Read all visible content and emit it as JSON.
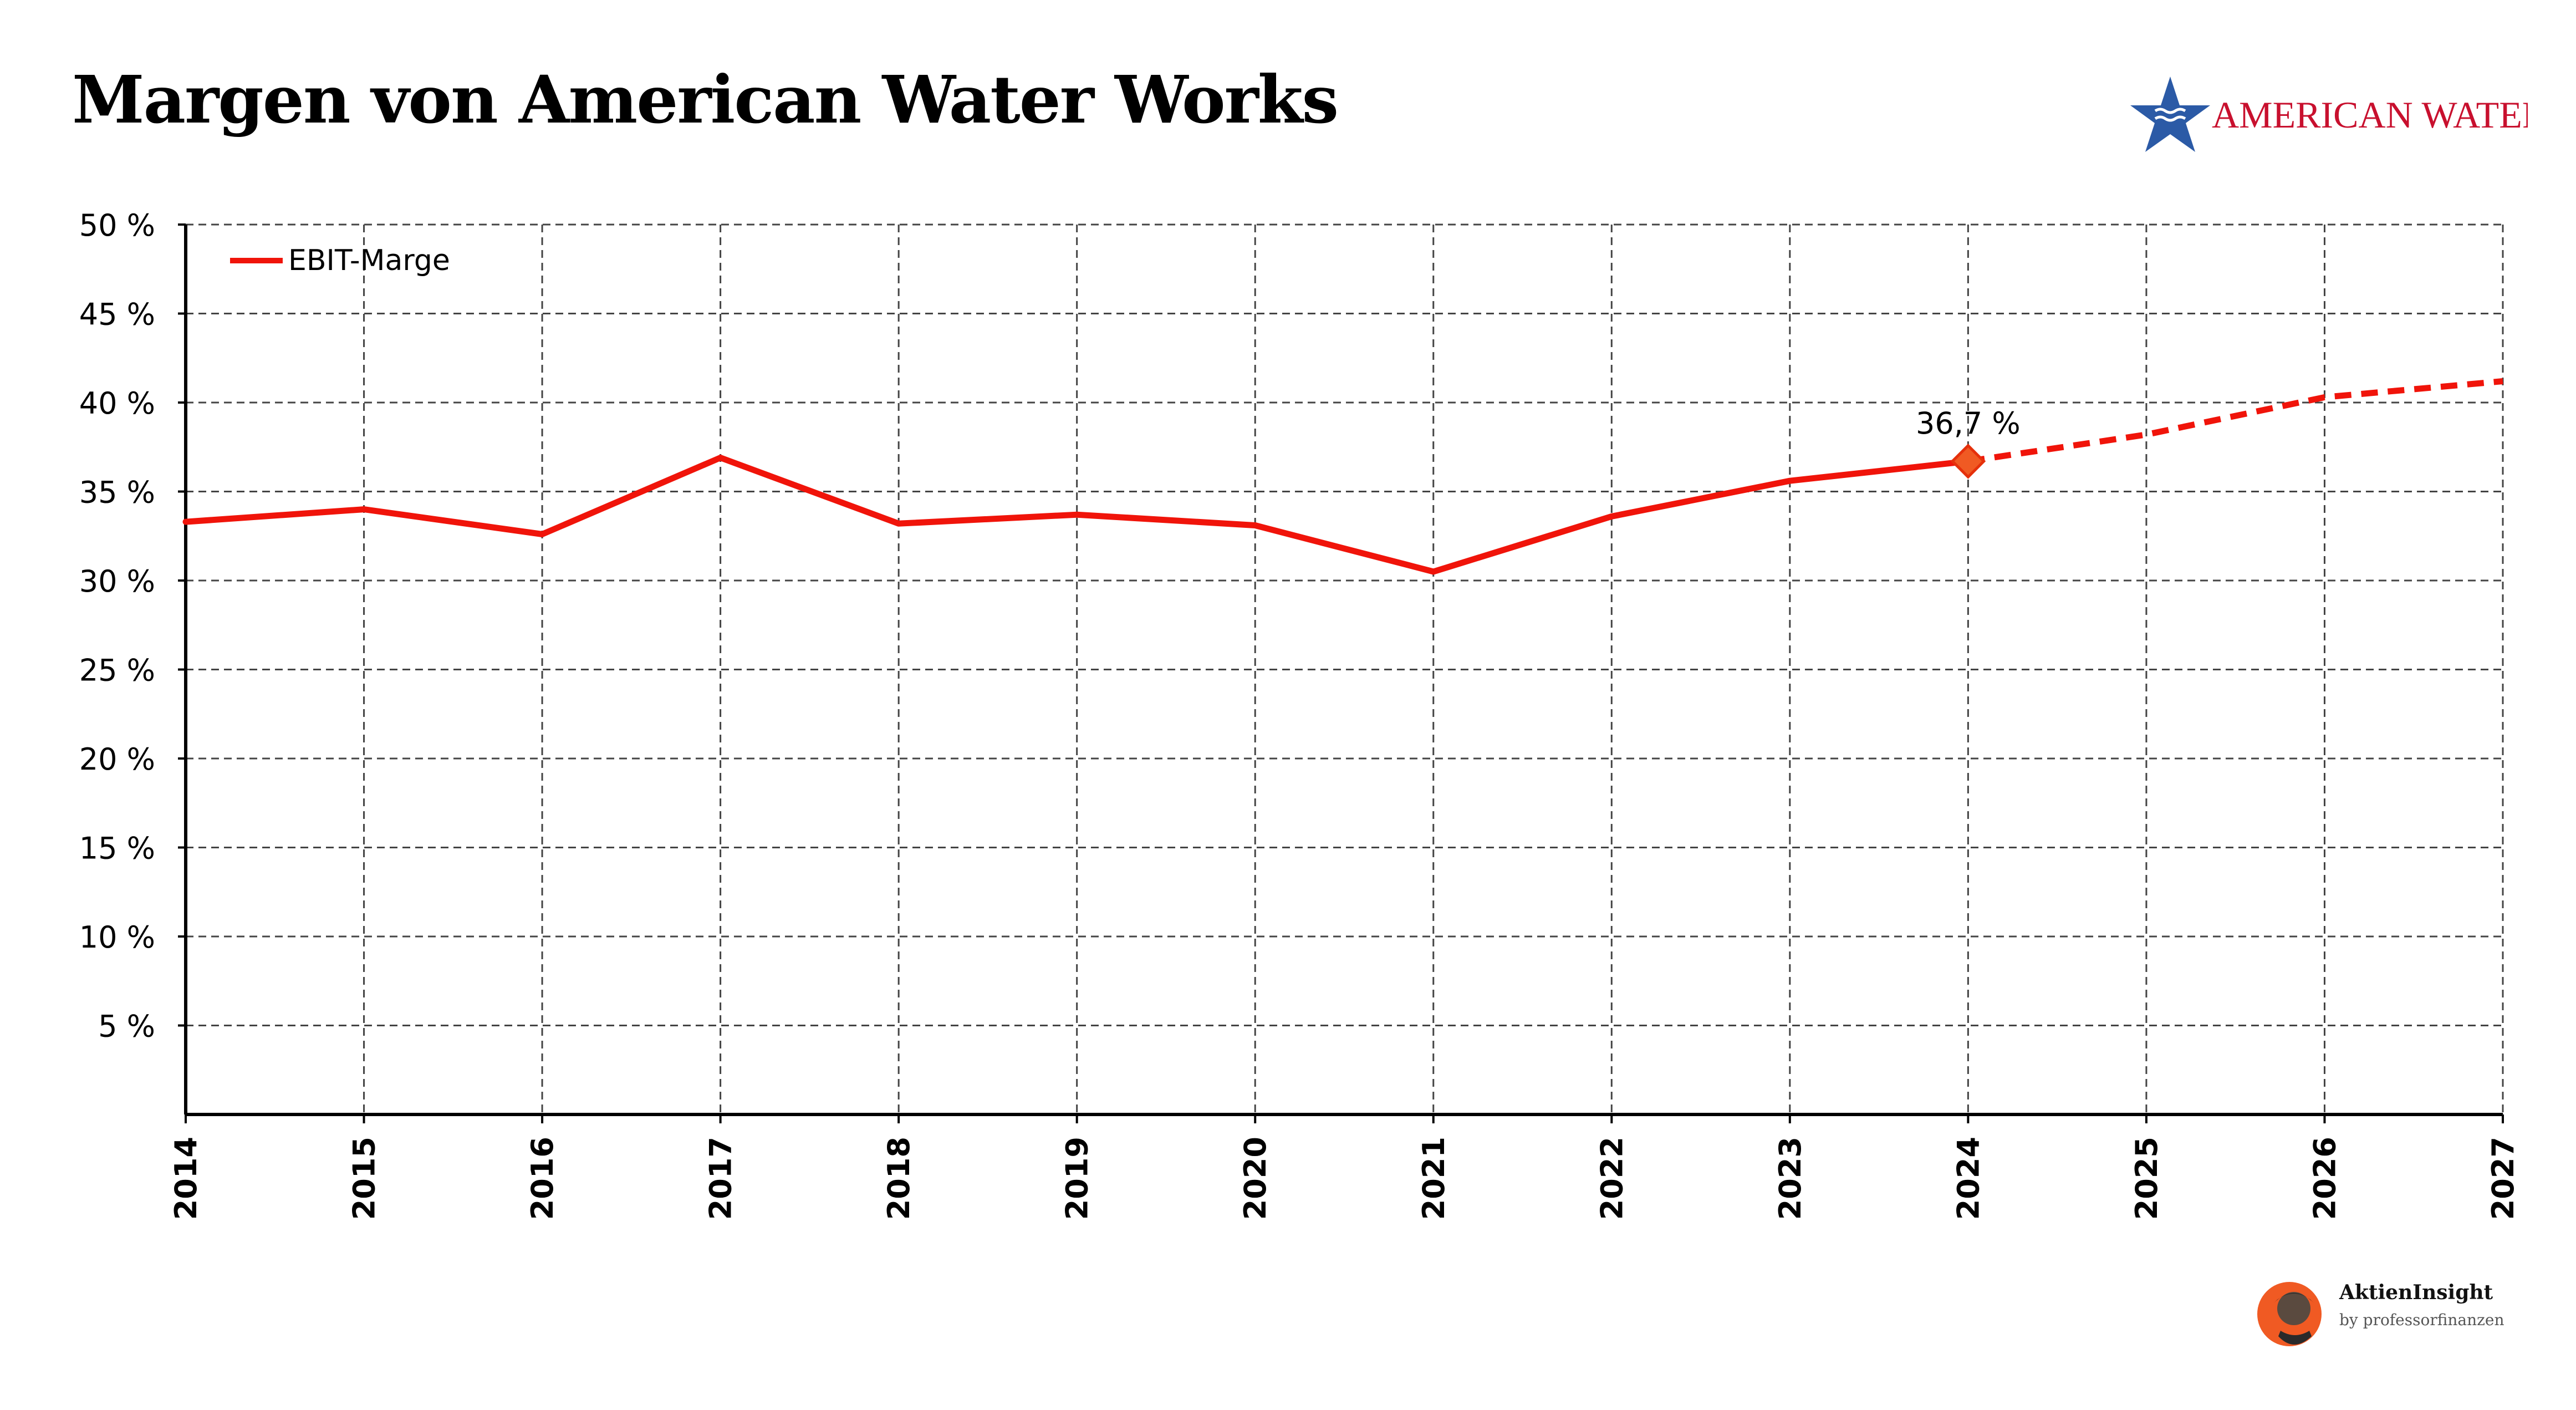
{
  "title": "Margen von American Water Works",
  "logo": {
    "text": "American Water",
    "text_color": "#c8102e",
    "star_color": "#2b5aa6"
  },
  "chart_data": {
    "type": "line",
    "x": [
      "2014",
      "2015",
      "2016",
      "2017",
      "2018",
      "2019",
      "2020",
      "2021",
      "2022",
      "2023",
      "2024",
      "2025",
      "2026",
      "2027"
    ],
    "series": [
      {
        "name": "EBIT-Marge",
        "color": "#f0140a",
        "values": [
          33.3,
          34.0,
          32.6,
          36.9,
          33.2,
          33.7,
          33.1,
          30.5,
          33.6,
          35.6,
          36.7,
          38.2,
          40.3,
          41.2
        ],
        "estimate_from": "2024"
      }
    ],
    "annotations": [
      {
        "x": "2024",
        "label": "36,7 %"
      }
    ],
    "yticks": [
      5,
      10,
      15,
      20,
      25,
      30,
      35,
      40,
      45,
      50
    ],
    "ytick_labels": [
      "5 %",
      "10 %",
      "15 %",
      "20 %",
      "25 %",
      "30 %",
      "35 %",
      "40 %",
      "45 %",
      "50 %"
    ],
    "ylim": [
      0,
      50
    ],
    "grid": true,
    "legend": "top-left",
    "xlabel": "",
    "ylabel": ""
  },
  "brand": {
    "name": "AktienInsight",
    "tagline": "by professorfinanzen",
    "accent": "#f05a23"
  }
}
